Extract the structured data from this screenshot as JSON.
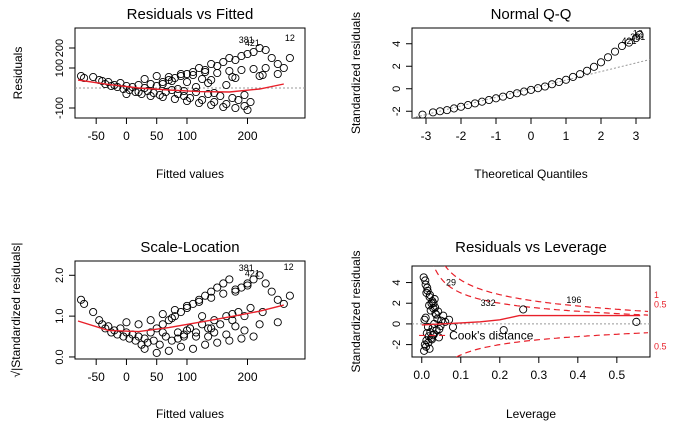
{
  "chart_data": [
    {
      "type": "scatter",
      "title": "Residuals vs Fitted",
      "xlabel": "Fitted values",
      "ylabel": "Residuals",
      "xlim": [
        -85,
        295
      ],
      "ylim": [
        -150,
        300
      ],
      "xticks": [
        -50,
        0,
        50,
        100,
        200
      ],
      "yticks": [
        -100,
        100,
        200
      ],
      "x_points": [
        -75,
        -70,
        -55,
        -45,
        -40,
        -35,
        -30,
        -25,
        -20,
        -15,
        -10,
        -5,
        0,
        5,
        10,
        15,
        20,
        25,
        30,
        35,
        40,
        45,
        50,
        55,
        60,
        65,
        70,
        75,
        80,
        85,
        90,
        95,
        100,
        105,
        110,
        115,
        120,
        125,
        130,
        135,
        140,
        145,
        150,
        155,
        160,
        165,
        170,
        175,
        180,
        185,
        190,
        195,
        200,
        205,
        210,
        220,
        230,
        240,
        250,
        260,
        270,
        30,
        50,
        70,
        90,
        110,
        130,
        150,
        170,
        190,
        210,
        230,
        60,
        80,
        100,
        120,
        140,
        160,
        180,
        200,
        40,
        20,
        0,
        60,
        100,
        140,
        180,
        220,
        250,
        75,
        125,
        175,
        225,
        95,
        145,
        195,
        115,
        165,
        85,
        135
      ],
      "y_points": [
        60,
        50,
        55,
        40,
        35,
        20,
        30,
        10,
        15,
        5,
        25,
        -5,
        10,
        -10,
        5,
        -20,
        15,
        -30,
        0,
        -15,
        20,
        -25,
        10,
        -35,
        30,
        -20,
        40,
        -10,
        50,
        -30,
        60,
        -40,
        70,
        -50,
        80,
        -20,
        100,
        -60,
        90,
        -30,
        120,
        -70,
        110,
        -40,
        130,
        -80,
        150,
        -50,
        140,
        -60,
        160,
        -90,
        170,
        -70,
        180,
        200,
        190,
        150,
        120,
        100,
        150,
        45,
        60,
        55,
        70,
        65,
        80,
        75,
        85,
        90,
        95,
        100,
        -45,
        -55,
        -65,
        -75,
        -85,
        -95,
        -100,
        -110,
        -40,
        -20,
        -30,
        20,
        30,
        40,
        50,
        60,
        70,
        35,
        45,
        55,
        65,
        -15,
        -25,
        -35,
        5,
        15,
        -5,
        25
      ],
      "smooth_x": [
        -80,
        -30,
        20,
        70,
        120,
        170,
        220,
        260
      ],
      "smooth_y": [
        40,
        18,
        0,
        -10,
        -18,
        -20,
        -5,
        20
      ],
      "zero_line": 0,
      "labels": [
        {
          "text": "381",
          "x": 198,
          "y": 240
        },
        {
          "text": "421",
          "x": 208,
          "y": 225
        },
        {
          "text": "12",
          "x": 270,
          "y": 250
        }
      ]
    },
    {
      "type": "scatter",
      "title": "Normal Q-Q",
      "xlabel": "Theoretical Quantiles",
      "ylabel": "Standardized residuals",
      "xlim": [
        -3.4,
        3.4
      ],
      "ylim": [
        -2.6,
        5.4
      ],
      "xticks": [
        -3,
        -2,
        -1,
        0,
        1,
        2,
        3
      ],
      "yticks": [
        -2,
        0,
        2,
        4
      ],
      "reference_line": {
        "x1": -3.4,
        "y1": -2.6,
        "x2": 3.4,
        "y2": 2.6
      },
      "x_points": [
        -3.1,
        -2.8,
        -2.6,
        -2.4,
        -2.2,
        -2.0,
        -1.8,
        -1.6,
        -1.4,
        -1.2,
        -1.0,
        -0.8,
        -0.6,
        -0.4,
        -0.2,
        0.0,
        0.2,
        0.4,
        0.6,
        0.8,
        1.0,
        1.2,
        1.4,
        1.6,
        1.8,
        2.0,
        2.2,
        2.4,
        2.6,
        2.8,
        3.0,
        3.1
      ],
      "y_points": [
        -2.3,
        -2.1,
        -2.0,
        -1.9,
        -1.75,
        -1.6,
        -1.45,
        -1.3,
        -1.15,
        -1.0,
        -0.85,
        -0.7,
        -0.55,
        -0.4,
        -0.25,
        -0.1,
        0.05,
        0.2,
        0.4,
        0.6,
        0.8,
        1.05,
        1.3,
        1.6,
        1.95,
        2.35,
        2.8,
        3.3,
        3.8,
        4.1,
        4.5,
        4.8
      ],
      "labels": [
        {
          "text": "12",
          "x": 3.05,
          "y": 4.9
        },
        {
          "text": "381",
          "x": 3.05,
          "y": 4.6
        },
        {
          "text": "421",
          "x": 2.8,
          "y": 4.25
        }
      ]
    },
    {
      "type": "scatter",
      "title": "Scale-Location",
      "xlabel": "Fitted values",
      "ylabel": "√|Standardized residuals|",
      "xlim": [
        -85,
        295
      ],
      "ylim": [
        -0.05,
        2.35
      ],
      "xticks": [
        -50,
        0,
        50,
        100,
        200
      ],
      "yticks": [
        0.0,
        1.0,
        2.0
      ],
      "ytick_labels": [
        "0.0",
        "1.0",
        "2.0"
      ],
      "x_points": [
        -75,
        -70,
        -55,
        -45,
        -40,
        -35,
        -30,
        -25,
        -20,
        -15,
        -10,
        -5,
        0,
        5,
        10,
        15,
        20,
        25,
        30,
        35,
        40,
        45,
        50,
        55,
        60,
        65,
        70,
        75,
        80,
        85,
        90,
        95,
        100,
        105,
        110,
        115,
        120,
        125,
        130,
        135,
        140,
        145,
        150,
        155,
        160,
        165,
        170,
        175,
        180,
        185,
        190,
        195,
        200,
        205,
        210,
        220,
        230,
        240,
        250,
        260,
        270,
        30,
        50,
        70,
        90,
        110,
        130,
        150,
        170,
        190,
        210,
        60,
        80,
        100,
        120,
        140,
        160,
        180,
        200,
        40,
        20,
        0,
        60,
        100,
        140,
        180,
        220,
        250,
        75,
        125,
        175,
        225,
        95,
        145,
        195,
        115,
        165,
        85,
        135
      ],
      "y_points": [
        1.4,
        1.3,
        1.1,
        0.9,
        0.8,
        0.7,
        0.75,
        0.6,
        0.65,
        0.55,
        0.7,
        0.5,
        0.6,
        0.45,
        0.55,
        0.4,
        0.5,
        0.3,
        0.45,
        0.35,
        0.6,
        0.4,
        0.7,
        0.3,
        0.8,
        0.5,
        0.9,
        0.4,
        1.0,
        0.6,
        1.1,
        0.5,
        1.2,
        0.7,
        1.3,
        0.6,
        1.4,
        0.8,
        1.5,
        0.7,
        1.6,
        0.9,
        1.7,
        0.8,
        1.8,
        1.0,
        1.9,
        0.9,
        1.6,
        1.1,
        1.7,
        1.0,
        1.8,
        1.2,
        1.9,
        2.0,
        1.8,
        1.6,
        1.4,
        1.3,
        1.5,
        0.2,
        0.1,
        0.15,
        0.25,
        0.2,
        0.3,
        0.35,
        0.4,
        0.45,
        0.5,
        1.05,
        1.15,
        1.25,
        1.35,
        1.45,
        1.55,
        1.65,
        1.75,
        0.9,
        0.8,
        0.85,
        0.6,
        0.65,
        0.7,
        0.75,
        0.8,
        0.85,
        0.95,
        1.0,
        1.05,
        1.1,
        0.55,
        0.6,
        0.65,
        0.5,
        0.55,
        0.45,
        0.5
      ],
      "smooth_x": [
        -80,
        -30,
        20,
        70,
        120,
        170,
        220,
        260
      ],
      "smooth_y": [
        0.88,
        0.65,
        0.62,
        0.72,
        0.85,
        0.98,
        1.12,
        1.27
      ],
      "labels": [
        {
          "text": "381",
          "x": 198,
          "y": 2.18
        },
        {
          "text": "421",
          "x": 208,
          "y": 2.05
        },
        {
          "text": "12",
          "x": 268,
          "y": 2.2
        }
      ]
    },
    {
      "type": "scatter",
      "title": "Residuals vs Leverage",
      "xlabel": "Leverage",
      "ylabel": "Standardized residuals",
      "xlim": [
        -0.025,
        0.585
      ],
      "ylim": [
        -3.2,
        5.6
      ],
      "xticks": [
        0.0,
        0.1,
        0.2,
        0.3,
        0.4,
        0.5
      ],
      "xtick_labels": [
        "0.0",
        "0.1",
        "0.2",
        "0.3",
        "0.4",
        "0.5"
      ],
      "yticks": [
        -2,
        0,
        2,
        4
      ],
      "x_points": [
        0.005,
        0.008,
        0.01,
        0.012,
        0.015,
        0.018,
        0.02,
        0.022,
        0.025,
        0.028,
        0.03,
        0.032,
        0.035,
        0.04,
        0.045,
        0.05,
        0.006,
        0.009,
        0.011,
        0.014,
        0.017,
        0.021,
        0.024,
        0.027,
        0.031,
        0.034,
        0.038,
        0.042,
        0.048,
        0.055,
        0.007,
        0.013,
        0.019,
        0.026,
        0.033,
        0.01,
        0.016,
        0.023,
        0.029,
        0.037,
        0.012,
        0.02,
        0.03,
        0.044,
        0.06,
        0.07,
        0.08,
        0.21,
        0.26,
        0.55
      ],
      "y_points": [
        4.5,
        -2.0,
        3.8,
        -1.6,
        3.2,
        -1.2,
        2.6,
        -0.8,
        2.0,
        -0.4,
        1.5,
        0.0,
        1.0,
        0.5,
        -0.5,
        0.3,
        -2.6,
        4.2,
        -2.2,
        3.5,
        -1.8,
        2.8,
        -1.4,
        2.2,
        -1.0,
        1.6,
        -0.6,
        1.2,
        -0.2,
        0.8,
        0.4,
        -0.9,
        1.8,
        -1.5,
        2.4,
        0.6,
        -0.3,
        1.3,
        -1.1,
        0.9,
        3.0,
        -2.4,
        2.0,
        -1.3,
        0.2,
        0.4,
        -0.3,
        -0.6,
        1.4,
        0.2
      ],
      "smooth_x": [
        0.0,
        0.05,
        0.1,
        0.15,
        0.2,
        0.25,
        0.3,
        0.4,
        0.56
      ],
      "smooth_y": [
        -0.1,
        0.0,
        0.1,
        0.2,
        0.4,
        0.8,
        0.8,
        0.8,
        0.8
      ],
      "zero_line": 0,
      "labels": [
        {
          "text": "29",
          "x": 0.075,
          "y": 4.0
        },
        {
          "text": "332",
          "x": 0.17,
          "y": 2.0
        },
        {
          "text": "196",
          "x": 0.39,
          "y": 2.3
        }
      ],
      "cook_label": "Cook's distance",
      "cook_right_labels": [
        {
          "text": "1",
          "y": 2.8
        },
        {
          "text": "0.5",
          "y": 1.9
        },
        {
          "text": "0.5",
          "y": -2.2
        }
      ]
    }
  ]
}
